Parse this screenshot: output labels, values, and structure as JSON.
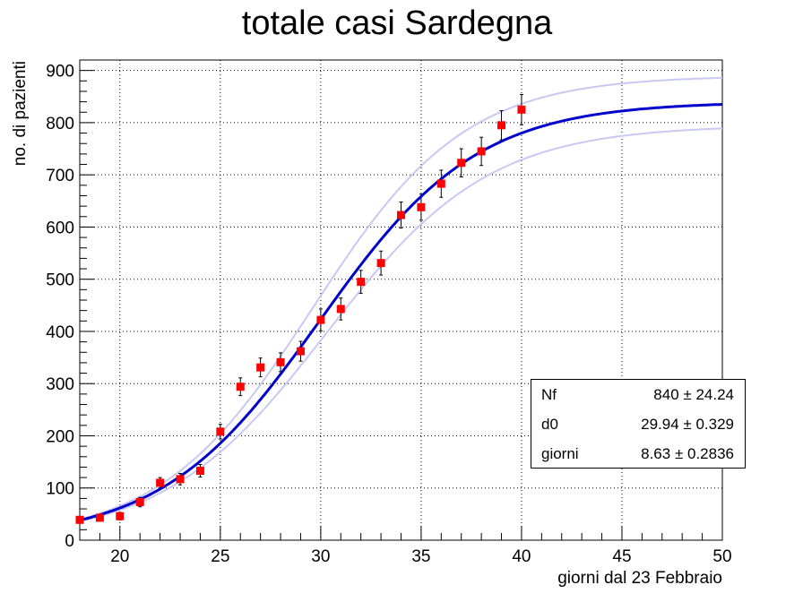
{
  "chart_data": {
    "type": "scatter",
    "title": "totale casi Sardegna",
    "xlabel": "giorni dal 23 Febbraio",
    "ylabel": "no. di pazienti",
    "xlim": [
      18,
      50
    ],
    "ylim": [
      0,
      920
    ],
    "x_ticks": [
      20,
      25,
      30,
      35,
      40,
      45,
      50
    ],
    "y_ticks": [
      0,
      100,
      200,
      300,
      400,
      500,
      600,
      700,
      800,
      900
    ],
    "grid": true,
    "series": [
      {
        "kind": "points_with_errors",
        "color": "#ff0000",
        "x": [
          18,
          19,
          20,
          21,
          22,
          23,
          24,
          25,
          26,
          27,
          28,
          29,
          30,
          31,
          32,
          33,
          34,
          35,
          36,
          37,
          38,
          39,
          40
        ],
        "y": [
          39,
          43,
          46,
          73,
          110,
          117,
          133,
          208,
          294,
          331,
          341,
          362,
          422,
          443,
          495,
          531,
          623,
          638,
          683,
          723,
          745,
          795,
          825
        ],
        "err": [
          6,
          6,
          7,
          9,
          10,
          11,
          12,
          14,
          17,
          18,
          18,
          19,
          21,
          21,
          22,
          23,
          25,
          25,
          26,
          27,
          27,
          28,
          29
        ]
      },
      {
        "kind": "fit",
        "color": "#0000cc",
        "model": "logistic",
        "params": {
          "Nf": 840,
          "d0": 29.94,
          "giorni": 8.63
        }
      },
      {
        "kind": "band_upper",
        "color": "#c8c8f5",
        "model": "logistic",
        "params": {
          "Nf": 890,
          "d0": 29.6,
          "giorni": 8.35
        }
      },
      {
        "kind": "band_lower",
        "color": "#c8c8f5",
        "model": "logistic",
        "params": {
          "Nf": 795,
          "d0": 30.3,
          "giorni": 8.9
        }
      }
    ],
    "stats": [
      {
        "name": "Nf",
        "value": "840",
        "error": "24.24"
      },
      {
        "name": "d0",
        "value": "29.94",
        "error": "0.329"
      },
      {
        "name": "giorni",
        "value": "8.63",
        "error": "0.2836"
      }
    ]
  }
}
